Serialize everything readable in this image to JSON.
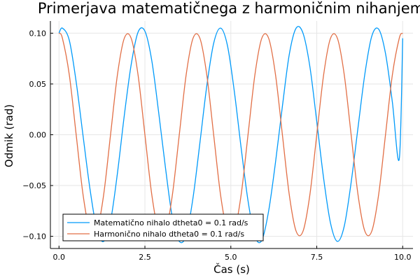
{
  "chart_data": {
    "type": "line",
    "title": "Primerjava matematičnega z harmoničnim nihanjem",
    "xlabel": "Čas (s)",
    "ylabel": "Odmik (rad)",
    "xlim": [
      -0.25,
      10.3
    ],
    "ylim": [
      -0.112,
      0.112
    ],
    "xticks": [
      0,
      2.5,
      5,
      7.5,
      10
    ],
    "xtick_labels": [
      "0.0",
      "2.5",
      "5.0",
      "7.5",
      "10.0"
    ],
    "yticks": [
      -0.1,
      -0.05,
      0,
      0.05,
      0.1
    ],
    "ytick_labels": [
      "−0.10",
      "−0.05",
      "0.00",
      "0.05",
      "0.10"
    ],
    "grid": true,
    "legend_position": "bottom-left",
    "series": [
      {
        "name": "Matematično nihalo dtheta0 = 0.1 rad/s",
        "color": "#009AFA",
        "x": [
          0.0,
          0.1,
          0.3,
          0.5,
          0.7,
          0.9,
          1.1,
          1.3,
          1.5,
          1.7,
          1.9,
          2.1,
          2.3,
          2.5,
          2.7,
          2.9,
          3.1,
          3.3,
          3.5,
          3.7,
          3.9,
          4.1,
          4.3,
          4.5,
          4.7,
          4.9,
          5.1,
          5.3,
          5.5,
          5.7,
          5.9,
          6.1,
          6.3,
          6.5,
          6.7,
          6.9,
          7.1,
          7.3,
          7.5,
          7.7,
          7.9,
          8.1,
          8.3,
          8.5,
          8.7,
          8.9,
          9.1,
          9.3,
          9.5,
          9.7,
          9.9,
          10.0
        ],
        "y": [
          0.1,
          0.105,
          0.093,
          0.052,
          -0.001,
          -0.053,
          -0.093,
          -0.105,
          -0.085,
          -0.038,
          0.019,
          0.069,
          0.101,
          0.102,
          0.073,
          0.022,
          -0.033,
          -0.082,
          -0.105,
          -0.099,
          -0.062,
          -0.008,
          0.048,
          0.09,
          0.105,
          0.088,
          0.043,
          -0.013,
          -0.065,
          -0.1,
          -0.104,
          -0.075,
          -0.027,
          0.028,
          0.079,
          0.105,
          0.1,
          0.067,
          0.013,
          -0.043,
          -0.087,
          -0.105,
          -0.09,
          -0.047,
          0.007,
          0.06,
          0.097,
          0.104,
          0.08,
          0.032,
          -0.024,
          0.095
        ]
      },
      {
        "name": "Harmonično nihalo dtheta0 = 0.1 rad/s",
        "color": "#E26F46",
        "x": [
          0.0,
          0.1,
          0.3,
          0.5,
          0.7,
          0.9,
          1.1,
          1.3,
          1.5,
          1.7,
          1.9,
          2.1,
          2.3,
          2.5,
          2.7,
          2.9,
          3.1,
          3.3,
          3.5,
          3.7,
          3.9,
          4.1,
          4.3,
          4.5,
          4.7,
          4.9,
          5.1,
          5.3,
          5.5,
          5.7,
          5.9,
          6.1,
          6.3,
          6.5,
          6.7,
          6.9,
          7.1,
          7.3,
          7.5,
          7.7,
          7.9,
          8.1,
          8.3,
          8.5,
          8.7,
          8.9,
          9.1,
          9.3,
          9.5,
          9.7,
          9.9,
          10.0
        ],
        "y": [
          0.1,
          0.095,
          0.059,
          0.0,
          -0.059,
          -0.095,
          -0.095,
          -0.059,
          0.0,
          0.059,
          0.095,
          0.095,
          0.059,
          0.0,
          -0.059,
          -0.095,
          -0.095,
          -0.059,
          0.0,
          0.059,
          0.095,
          0.095,
          0.059,
          0.0,
          -0.059,
          -0.095,
          -0.095,
          -0.059,
          0.0,
          0.059,
          0.095,
          0.095,
          0.059,
          0.0,
          -0.059,
          -0.095,
          -0.095,
          -0.059,
          0.0,
          0.059,
          0.095,
          0.095,
          0.059,
          0.0,
          -0.059,
          -0.095,
          -0.095,
          -0.059,
          0.0,
          0.059,
          0.095,
          0.1
        ]
      }
    ]
  }
}
